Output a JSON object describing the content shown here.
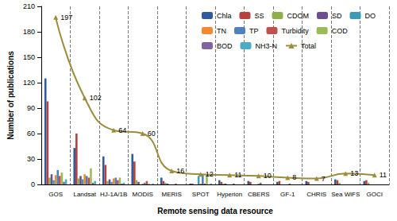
{
  "chart_data": {
    "type": "bar",
    "x_label": "Remote sensing data resource",
    "y_label": "Number of publications",
    "categories": [
      "GOS",
      "Landsat",
      "HJ-1A/1B",
      "MODIS",
      "MERIS",
      "SPOT",
      "Hyperion",
      "CBERS",
      "GF-1",
      "CHRIS",
      "Sea WiFS",
      "GOCI"
    ],
    "series": [
      {
        "name": "Chla",
        "color": "#2e5b9c",
        "values": [
          125,
          43,
          33,
          36,
          8,
          1,
          5,
          4,
          3,
          4,
          6,
          4
        ]
      },
      {
        "name": "SS",
        "color": "#b8413d",
        "values": [
          98,
          60,
          23,
          27,
          4,
          1,
          3,
          3,
          4,
          3,
          5,
          5
        ]
      },
      {
        "name": "CDOM",
        "color": "#8db04c",
        "values": [
          8,
          7,
          4,
          5,
          2,
          0,
          1,
          0,
          0,
          0,
          2,
          2
        ]
      },
      {
        "name": "SD",
        "color": "#6b4f8f",
        "values": [
          12,
          10,
          6,
          3,
          1,
          0,
          1,
          0,
          0,
          0,
          0,
          0
        ]
      },
      {
        "name": "DO",
        "color": "#3b9bb5",
        "values": [
          5,
          6,
          3,
          0,
          0,
          10,
          0,
          0,
          0,
          0,
          0,
          0
        ]
      },
      {
        "name": "TN",
        "color": "#f08a30",
        "values": [
          11,
          12,
          7,
          1,
          0,
          1,
          0,
          1,
          0,
          0,
          0,
          0
        ]
      },
      {
        "name": "TP",
        "color": "#4f81bd",
        "values": [
          17,
          10,
          8,
          2,
          0,
          12,
          0,
          2,
          1,
          0,
          0,
          0
        ]
      },
      {
        "name": "Turbidity",
        "color": "#c0504d",
        "values": [
          10,
          8,
          5,
          4,
          1,
          1,
          1,
          0,
          0,
          0,
          0,
          0
        ]
      },
      {
        "name": "COD",
        "color": "#9bbb59",
        "values": [
          14,
          19,
          8,
          1,
          0,
          11,
          0,
          0,
          0,
          0,
          0,
          0
        ]
      },
      {
        "name": "BOD",
        "color": "#8064a2",
        "values": [
          3,
          2,
          1,
          0,
          0,
          0,
          0,
          0,
          0,
          0,
          0,
          0
        ]
      },
      {
        "name": "NH3-N",
        "color": "#4bacc6",
        "values": [
          6,
          4,
          2,
          1,
          0,
          1,
          0,
          0,
          0,
          0,
          0,
          0
        ]
      },
      {
        "name": "Total",
        "color": "#9c8d3e",
        "type": "line",
        "marker": "triangle",
        "line_style": "solid",
        "data_labels": true,
        "values": [
          197,
          102,
          64,
          60,
          16,
          12,
          11,
          10,
          8,
          7,
          13,
          11
        ]
      }
    ],
    "ylim": [
      0,
      210
    ],
    "yticks": [
      0,
      30,
      60,
      90,
      120,
      150,
      180,
      210
    ],
    "grid": false,
    "legend": "upper right"
  }
}
